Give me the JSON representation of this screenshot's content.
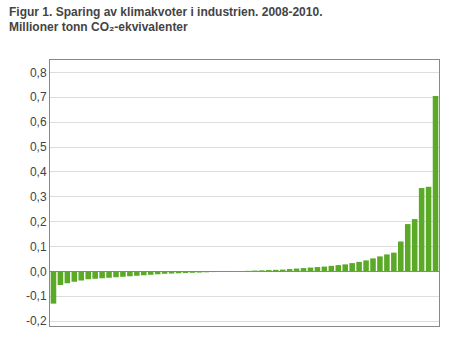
{
  "chart_data": {
    "type": "bar",
    "title": "Figur 1. Sparing av klimakvoter i industrien. 2008-2010.",
    "subtitle": "Millioner tonn CO₂-ekvivalenter",
    "categories": [
      null,
      null,
      null,
      null,
      null,
      null,
      null,
      null,
      null,
      null,
      null,
      null,
      null,
      null,
      null,
      null,
      null,
      null,
      null,
      null,
      null,
      null,
      null,
      null,
      null,
      null,
      null,
      null,
      null,
      null,
      null,
      null,
      null,
      null,
      null,
      null,
      null,
      null,
      null,
      null,
      null,
      null,
      null,
      null,
      null,
      null,
      null,
      null,
      null,
      null,
      null,
      null,
      null,
      null,
      null,
      null
    ],
    "values": [
      -0.13,
      -0.055,
      -0.048,
      -0.042,
      -0.037,
      -0.032,
      -0.03,
      -0.028,
      -0.026,
      -0.024,
      -0.022,
      -0.02,
      -0.018,
      -0.016,
      -0.014,
      -0.012,
      -0.01,
      -0.009,
      -0.008,
      -0.007,
      -0.006,
      -0.005,
      -0.004,
      -0.003,
      -0.002,
      -0.001,
      0.0,
      0.001,
      0.002,
      0.003,
      0.004,
      0.005,
      0.006,
      0.007,
      0.009,
      0.011,
      0.013,
      0.015,
      0.017,
      0.019,
      0.022,
      0.025,
      0.028,
      0.033,
      0.038,
      0.044,
      0.052,
      0.06,
      0.068,
      0.075,
      0.12,
      0.19,
      0.21,
      0.335,
      0.34,
      0.705
    ],
    "color": "#5aaa28",
    "ylim": [
      -0.22,
      0.85
    ],
    "yticks": [
      {
        "value": -0.2,
        "label": "-0,2"
      },
      {
        "value": -0.1,
        "label": "-0,1"
      },
      {
        "value": 0.0,
        "label": "0,0"
      },
      {
        "value": 0.1,
        "label": "0,1"
      },
      {
        "value": 0.2,
        "label": "0,2"
      },
      {
        "value": 0.3,
        "label": "0,3"
      },
      {
        "value": 0.4,
        "label": "0,4"
      },
      {
        "value": 0.5,
        "label": "0,5"
      },
      {
        "value": 0.6,
        "label": "0,6"
      },
      {
        "value": 0.7,
        "label": "0,7"
      },
      {
        "value": 0.8,
        "label": "0,8"
      }
    ],
    "grid": true,
    "tick_labels": "y"
  }
}
